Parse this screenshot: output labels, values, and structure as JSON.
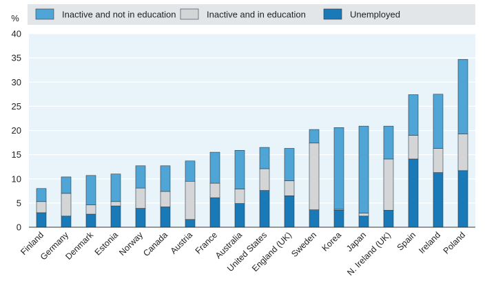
{
  "chart_data": {
    "type": "bar",
    "stacked": true,
    "y_unit_label": "%",
    "ylim": [
      0,
      40
    ],
    "y_ticks": [
      0,
      5,
      10,
      15,
      20,
      25,
      30,
      35,
      40
    ],
    "grid": true,
    "legend_placement": "top",
    "categories": [
      "Finland",
      "Germany",
      "Denmark",
      "Estonia",
      "Norway",
      "Canada",
      "Austria",
      "France",
      "Australia",
      "United States",
      "England (UK)",
      "Sweden",
      "Korea",
      "Japan",
      "N. Ireland (UK)",
      "Spain",
      "Ireland",
      "Poland"
    ],
    "series": [
      {
        "name": "Unemployed",
        "color": "#1a7ab8",
        "values": [
          3.0,
          2.3,
          2.7,
          4.4,
          3.9,
          4.2,
          1.6,
          6.1,
          4.9,
          7.6,
          6.5,
          3.6,
          3.5,
          2.3,
          3.5,
          14.1,
          11.3,
          11.7
        ]
      },
      {
        "name": "Inactive and in education",
        "color": "#d3d5d6",
        "values": [
          2.3,
          4.7,
          1.9,
          0.9,
          4.2,
          3.2,
          7.9,
          3.0,
          3.0,
          4.5,
          3.1,
          13.8,
          0.2,
          0.6,
          10.6,
          4.9,
          5.0,
          7.6
        ]
      },
      {
        "name": "Inactive and not in education",
        "color": "#4fa6d6",
        "values": [
          2.7,
          3.4,
          6.1,
          5.7,
          4.6,
          5.3,
          4.2,
          6.4,
          8.0,
          4.4,
          6.7,
          2.8,
          16.9,
          18.0,
          6.8,
          8.4,
          11.2,
          15.4
        ]
      }
    ],
    "legend_order": [
      "Inactive and not in education",
      "Inactive and in education",
      "Unemployed"
    ]
  }
}
